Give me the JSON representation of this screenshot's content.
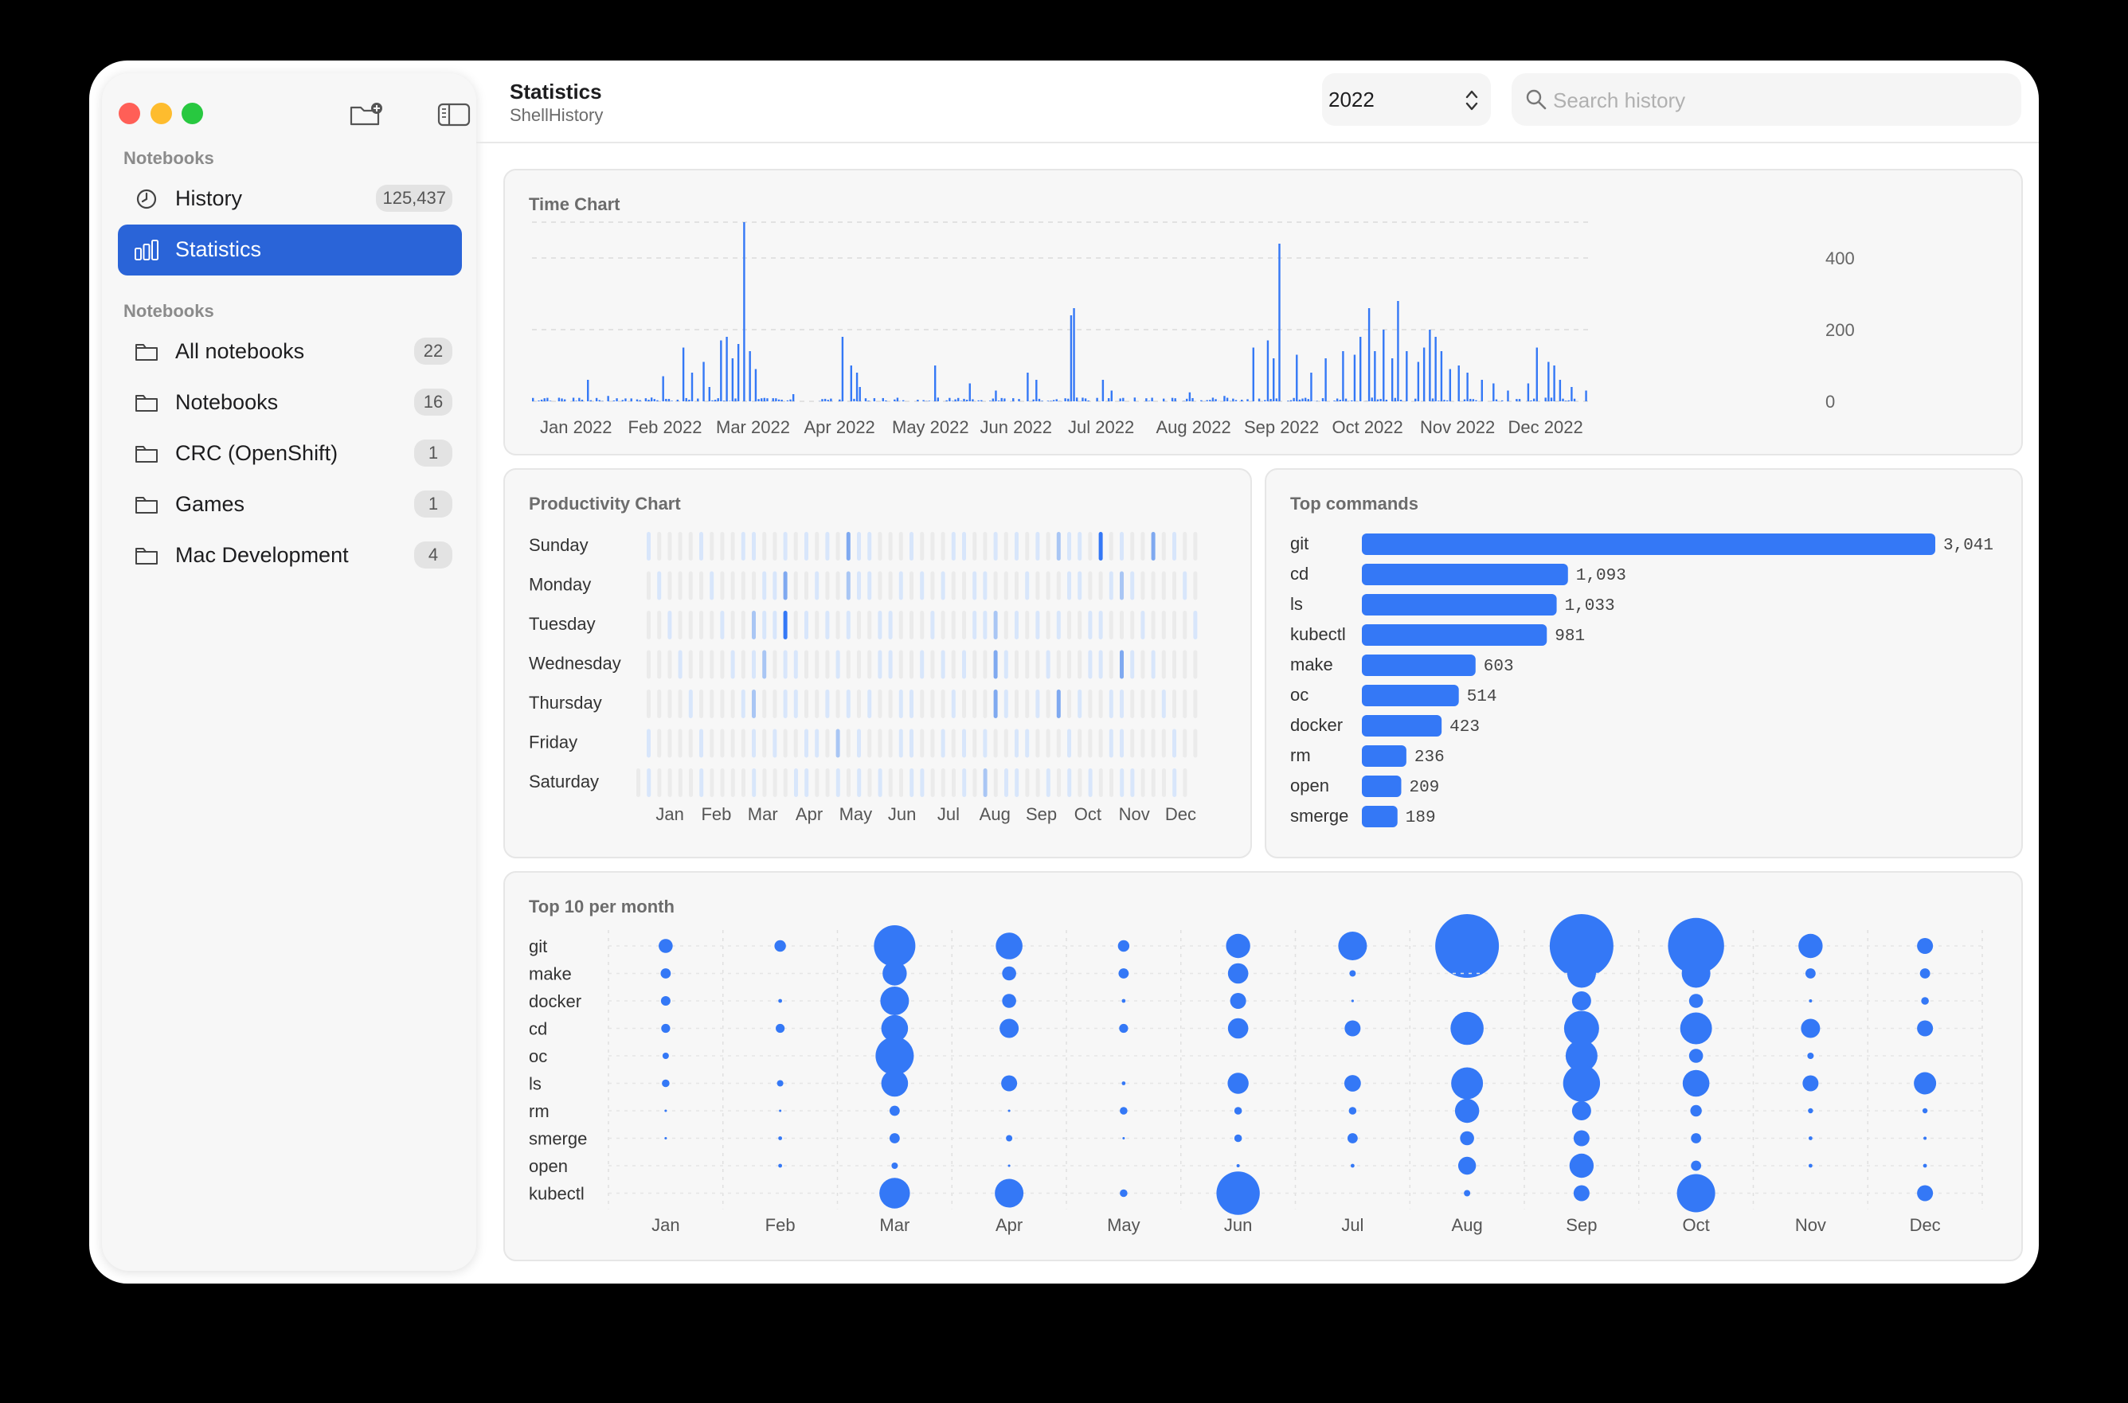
{
  "header": {
    "title": "Statistics",
    "subtitle": "ShellHistory"
  },
  "year_select": {
    "value": "2022"
  },
  "search": {
    "placeholder": "Search history",
    "value": ""
  },
  "sidebar": {
    "section1_label": "Notebooks",
    "section2_label": "Notebooks",
    "items": [
      {
        "label": "History",
        "count": "125,437",
        "icon": "clock-icon",
        "selected": false
      },
      {
        "label": "Statistics",
        "count": "",
        "icon": "chart-bar-icon",
        "selected": true
      }
    ],
    "notebooks": [
      {
        "label": "All notebooks",
        "count": "22",
        "icon": "folder-icon"
      },
      {
        "label": "Notebooks",
        "count": "16",
        "icon": "folder-icon"
      },
      {
        "label": "CRC (OpenShift)",
        "count": "1",
        "icon": "folder-icon"
      },
      {
        "label": "Games",
        "count": "1",
        "icon": "folder-icon"
      },
      {
        "label": "Mac Development",
        "count": "4",
        "icon": "folder-icon"
      }
    ]
  },
  "colors": {
    "accent": "#2a64d8",
    "bar": "#3478f6",
    "light_bar": "#d8e6fb",
    "empty_cell": "#ebebeb"
  },
  "cards": {
    "time_chart_title": "Time Chart",
    "productivity_title": "Productivity Chart",
    "top_commands_title": "Top commands",
    "top10_title": "Top 10 per month"
  },
  "chart_data": [
    {
      "type": "bar",
      "name": "time-chart",
      "title": "Time Chart",
      "x_ticks": [
        "Jan 2022",
        "Feb 2022",
        "Mar 2022",
        "Apr 2022",
        "May 2022",
        "Jun 2022",
        "Jul 2022",
        "Aug 2022",
        "Sep 2022",
        "Oct 2022",
        "Nov 2022",
        "Dec 2022"
      ],
      "y_ticks": [
        0,
        200,
        400
      ],
      "ylim": [
        0,
        500
      ],
      "grid": true,
      "spikes": [
        [
          10,
          10
        ],
        [
          15,
          10
        ],
        [
          20,
          60
        ],
        [
          27,
          15
        ],
        [
          35,
          8
        ],
        [
          46,
          70
        ],
        [
          53,
          150
        ],
        [
          56,
          80
        ],
        [
          60,
          110
        ],
        [
          62,
          40
        ],
        [
          66,
          170
        ],
        [
          68,
          180
        ],
        [
          70,
          120
        ],
        [
          72,
          160
        ],
        [
          74,
          500
        ],
        [
          76,
          140
        ],
        [
          78,
          90
        ],
        [
          91,
          20
        ],
        [
          108,
          180
        ],
        [
          111,
          100
        ],
        [
          113,
          80
        ],
        [
          114,
          40
        ],
        [
          127,
          10
        ],
        [
          140,
          100
        ],
        [
          152,
          50
        ],
        [
          161,
          30
        ],
        [
          172,
          80
        ],
        [
          175,
          60
        ],
        [
          187,
          240
        ],
        [
          188,
          260
        ],
        [
          198,
          60
        ],
        [
          201,
          30
        ],
        [
          215,
          10
        ],
        [
          228,
          25
        ],
        [
          240,
          15
        ],
        [
          250,
          150
        ],
        [
          255,
          170
        ],
        [
          257,
          120
        ],
        [
          259,
          440
        ],
        [
          265,
          130
        ],
        [
          270,
          80
        ],
        [
          275,
          120
        ],
        [
          281,
          140
        ],
        [
          285,
          130
        ],
        [
          287,
          180
        ],
        [
          290,
          260
        ],
        [
          292,
          140
        ],
        [
          295,
          200
        ],
        [
          298,
          120
        ],
        [
          300,
          280
        ],
        [
          303,
          140
        ],
        [
          307,
          110
        ],
        [
          309,
          150
        ],
        [
          311,
          200
        ],
        [
          313,
          180
        ],
        [
          315,
          140
        ],
        [
          318,
          90
        ],
        [
          321,
          100
        ],
        [
          324,
          80
        ],
        [
          329,
          60
        ],
        [
          333,
          50
        ],
        [
          338,
          30
        ],
        [
          345,
          50
        ],
        [
          348,
          150
        ],
        [
          352,
          110
        ],
        [
          354,
          100
        ],
        [
          356,
          60
        ],
        [
          360,
          40
        ],
        [
          365,
          30
        ]
      ],
      "noise_level": 0.12
    },
    {
      "type": "heatmap",
      "name": "productivity-chart",
      "title": "Productivity Chart",
      "rows": [
        "Sunday",
        "Monday",
        "Tuesday",
        "Wednesday",
        "Thursday",
        "Friday",
        "Saturday"
      ],
      "columns": [
        "Jan",
        "Feb",
        "Mar",
        "Apr",
        "May",
        "Jun",
        "Jul",
        "Aug",
        "Sep",
        "Oct",
        "Nov",
        "Dec"
      ],
      "weeks": 53,
      "hotspots": [
        [
          0,
          43,
          0.9
        ],
        [
          0,
          19,
          0.6
        ],
        [
          0,
          39,
          0.5
        ],
        [
          0,
          48,
          0.6
        ],
        [
          1,
          13,
          0.6
        ],
        [
          1,
          19,
          0.5
        ],
        [
          1,
          45,
          0.55
        ],
        [
          2,
          13,
          0.95
        ],
        [
          2,
          10,
          0.5
        ],
        [
          2,
          33,
          0.5
        ],
        [
          3,
          11,
          0.5
        ],
        [
          3,
          33,
          0.6
        ],
        [
          3,
          45,
          0.6
        ],
        [
          4,
          10,
          0.5
        ],
        [
          4,
          33,
          0.65
        ],
        [
          4,
          39,
          0.6
        ],
        [
          5,
          18,
          0.55
        ],
        [
          6,
          33,
          0.5
        ]
      ]
    },
    {
      "type": "bar",
      "name": "top-commands",
      "title": "Top commands",
      "orientation": "horizontal",
      "categories": [
        "git",
        "cd",
        "ls",
        "kubectl",
        "make",
        "oc",
        "docker",
        "rm",
        "open",
        "smerge"
      ],
      "values": [
        3041,
        1093,
        1033,
        981,
        603,
        514,
        423,
        236,
        209,
        189
      ],
      "value_labels": [
        "3,041",
        "1,093",
        "1,033",
        "981",
        "603",
        "514",
        "423",
        "236",
        "209",
        "189"
      ]
    },
    {
      "type": "scatter",
      "name": "top10-per-month",
      "title": "Top 10 per month",
      "rows": [
        "git",
        "make",
        "docker",
        "cd",
        "oc",
        "ls",
        "rm",
        "smerge",
        "open",
        "kubectl"
      ],
      "columns": [
        "Jan",
        "Feb",
        "Mar",
        "Apr",
        "May",
        "Jun",
        "Jul",
        "Aug",
        "Sep",
        "Oct",
        "Nov",
        "Dec"
      ],
      "values": [
        [
          0.22,
          0.18,
          0.65,
          0.42,
          0.18,
          0.38,
          0.45,
          1.0,
          1.0,
          0.88,
          0.38,
          0.25
        ],
        [
          0.16,
          0.0,
          0.38,
          0.22,
          0.16,
          0.32,
          0.1,
          0.0,
          0.45,
          0.45,
          0.16,
          0.16
        ],
        [
          0.15,
          0.06,
          0.45,
          0.22,
          0.06,
          0.25,
          0.04,
          0.0,
          0.3,
          0.22,
          0.05,
          0.12
        ],
        [
          0.14,
          0.14,
          0.42,
          0.3,
          0.14,
          0.32,
          0.25,
          0.52,
          0.55,
          0.5,
          0.3,
          0.25
        ],
        [
          0.1,
          0.0,
          0.6,
          0.0,
          0.0,
          0.0,
          0.0,
          0.0,
          0.5,
          0.22,
          0.1,
          0.0
        ],
        [
          0.12,
          0.1,
          0.42,
          0.25,
          0.06,
          0.33,
          0.26,
          0.5,
          0.58,
          0.42,
          0.25,
          0.35
        ],
        [
          0.03,
          0.03,
          0.16,
          0.03,
          0.12,
          0.12,
          0.12,
          0.38,
          0.3,
          0.18,
          0.08,
          0.08
        ],
        [
          0.03,
          0.06,
          0.16,
          0.1,
          0.03,
          0.12,
          0.16,
          0.22,
          0.25,
          0.16,
          0.06,
          0.05
        ],
        [
          0.0,
          0.06,
          0.1,
          0.03,
          0.0,
          0.05,
          0.06,
          0.28,
          0.38,
          0.16,
          0.06,
          0.06
        ],
        [
          0.0,
          0.0,
          0.48,
          0.45,
          0.12,
          0.68,
          0.0,
          0.1,
          0.25,
          0.6,
          0.0,
          0.25
        ]
      ]
    }
  ]
}
